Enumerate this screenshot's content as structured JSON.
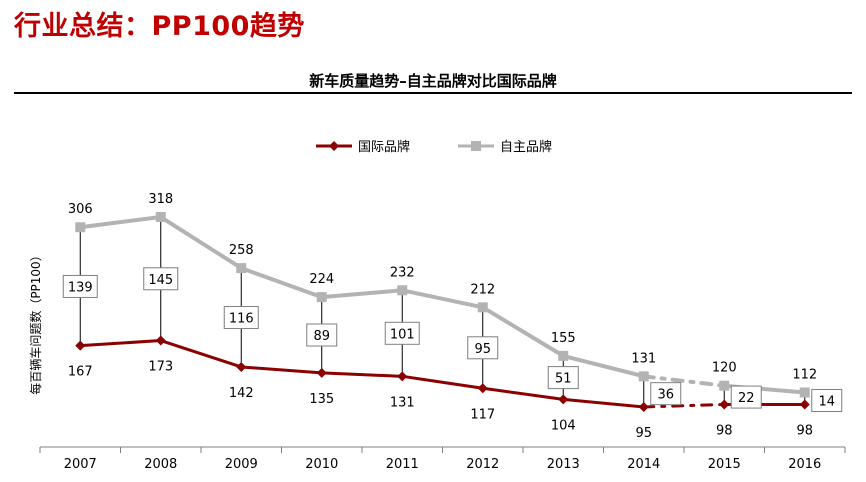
{
  "header": {
    "page_title": "行业总结：PP100趋势"
  },
  "chart_data": {
    "type": "line",
    "title": "新车质量趋势–自主品牌对比国际品牌",
    "ylabel": "每百辆车问题数（PP100）",
    "xlabel": "",
    "categories": [
      "2007",
      "2008",
      "2009",
      "2010",
      "2011",
      "2012",
      "2013",
      "2014",
      "2015",
      "2016"
    ],
    "series": [
      {
        "name": "国际品牌",
        "color": "#8b0000",
        "marker": "diamond",
        "values": [
          167,
          173,
          142,
          135,
          131,
          117,
          104,
          95,
          98,
          98
        ]
      },
      {
        "name": "自主品牌",
        "color": "#b3b3b3",
        "marker": "square",
        "values": [
          306,
          318,
          258,
          224,
          232,
          212,
          155,
          131,
          120,
          112
        ]
      }
    ],
    "gaps": [
      "139",
      "145",
      "116",
      "89",
      "101",
      "95",
      "51",
      "36",
      "22",
      "14"
    ],
    "ylim": [
      0,
      380
    ],
    "legend_position": "top-center",
    "dashed_segment": [
      "2014",
      "2015"
    ],
    "grid": false
  }
}
